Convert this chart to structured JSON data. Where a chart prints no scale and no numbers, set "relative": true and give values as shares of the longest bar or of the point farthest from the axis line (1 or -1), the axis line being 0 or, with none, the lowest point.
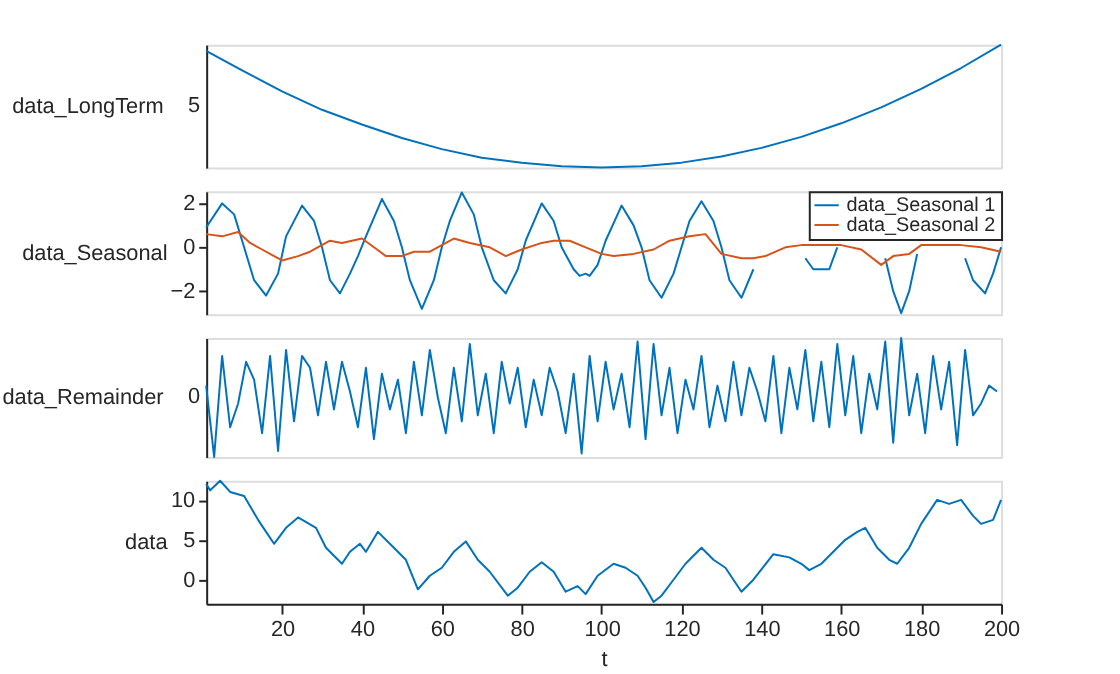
{
  "chart_data": [
    {
      "type": "line",
      "ylabel": "data_LongTerm",
      "relative": true,
      "xlim": [
        1,
        200
      ],
      "annotations": [
        "5"
      ],
      "tick_labels": "y",
      "grid": false,
      "legend": false,
      "series": [
        {
          "color": "#0072bd",
          "x": [
            1,
            10,
            20,
            30,
            40,
            50,
            60,
            70,
            80,
            90,
            100,
            110,
            120,
            130,
            140,
            150,
            160,
            170,
            180,
            190,
            200
          ],
          "values": [
            0.95,
            0.79,
            0.62,
            0.47,
            0.35,
            0.24,
            0.15,
            0.08,
            0.04,
            0.01,
            0,
            0.01,
            0.04,
            0.09,
            0.16,
            0.25,
            0.36,
            0.49,
            0.64,
            0.81,
            1.0
          ]
        }
      ]
    },
    {
      "type": "line",
      "ylabel": "data_Seasonal",
      "xlim": [
        1,
        200
      ],
      "ylim": [
        -3.05,
        2.55
      ],
      "yticks": [
        -2,
        0,
        2
      ],
      "tick_labels": "y",
      "grid": false,
      "legend": "top right",
      "series": [
        {
          "name": "data_Seasonal 1",
          "color": "#0072bd",
          "x": [
            1,
            5,
            8,
            10.5,
            13,
            16,
            19,
            21,
            25,
            28,
            30,
            32,
            34.5,
            37,
            39,
            41,
            45,
            48,
            50,
            52,
            55,
            58,
            60,
            62,
            65,
            68,
            70,
            73,
            76,
            79,
            81,
            85,
            88,
            90,
            93,
            94.5,
            96,
            97,
            99,
            101,
            105,
            108,
            110,
            112,
            115,
            118,
            120,
            122,
            125,
            128,
            130,
            132,
            135,
            138,
            140,
            141.5,
            145,
            149,
            151,
            153,
            157,
            159,
            160.5,
            165,
            169.5,
            171,
            173,
            175,
            177,
            179,
            180.5,
            185,
            189,
            191,
            193,
            196,
            198,
            200
          ],
          "values": [
            0.9,
            2.0,
            1.5,
            0,
            -1.5,
            -2.2,
            -1.2,
            0.5,
            1.9,
            1.2,
            0,
            -1.5,
            -2.1,
            -1.2,
            -0.4,
            0.5,
            2.2,
            1.2,
            0,
            -1.5,
            -2.8,
            -1.5,
            0,
            1.2,
            2.5,
            1.5,
            0,
            -1.5,
            -2.1,
            -1.0,
            0.3,
            2.0,
            1.2,
            0,
            -1.0,
            -1.3,
            -1.2,
            -1.3,
            -0.8,
            0.3,
            1.9,
            1.0,
            0,
            -1.5,
            -2.3,
            -1.2,
            0,
            1.2,
            2.1,
            1.2,
            0,
            -1.5,
            -2.3,
            -1.0,
            null,
            null,
            null,
            null,
            -0.5,
            -1.0,
            -1.0,
            0,
            null,
            null,
            null,
            -0.5,
            -2.0,
            -3.0,
            -2.0,
            -0.3,
            null,
            null,
            null,
            -0.5,
            -1.5,
            -2.1,
            -1.2,
            0
          ]
        },
        {
          "name": "data_Seasonal 2",
          "color": "#d95319",
          "x": [
            1,
            5,
            9,
            12,
            15,
            20,
            24,
            27,
            32,
            35,
            40,
            43,
            46,
            50,
            53,
            57,
            63,
            67,
            72,
            76,
            80,
            85,
            88,
            92,
            96,
            100,
            103,
            108,
            113,
            117,
            122,
            126,
            130,
            135,
            138,
            141,
            146,
            150,
            155,
            160,
            165,
            170,
            173,
            177,
            180,
            185,
            190,
            195,
            200
          ],
          "values": [
            0.6,
            0.5,
            0.7,
            0.2,
            -0.1,
            -0.6,
            -0.4,
            -0.2,
            0.3,
            0.2,
            0.4,
            0,
            -0.4,
            -0.4,
            -0.2,
            -0.2,
            0.4,
            0.2,
            0,
            -0.4,
            -0.1,
            0.2,
            0.3,
            0.3,
            0,
            -0.3,
            -0.4,
            -0.3,
            -0.1,
            0.3,
            0.5,
            0.6,
            -0.3,
            -0.5,
            -0.5,
            -0.4,
            0,
            0.1,
            0.1,
            0.1,
            -0.1,
            -0.8,
            -0.4,
            -0.3,
            0.1,
            0.1,
            0.1,
            0.0,
            -0.2
          ]
        }
      ]
    },
    {
      "type": "line",
      "ylabel": "data_Remainder",
      "relative": true,
      "xlim": [
        1,
        200
      ],
      "annotations": [
        "0"
      ],
      "tick_labels": "y",
      "grid": false,
      "legend": false,
      "series": [
        {
          "color": "#0072bd",
          "x": [
            1,
            3,
            5,
            7,
            9,
            11,
            13,
            15,
            17,
            19,
            21,
            23,
            25,
            27,
            29,
            31,
            33,
            35,
            37,
            39,
            41,
            43,
            45,
            47,
            49,
            51,
            53,
            55,
            57,
            59,
            61,
            63,
            65,
            67,
            69,
            71,
            73,
            75,
            77,
            79,
            81,
            83,
            85,
            87,
            89,
            91,
            93,
            95,
            97,
            99,
            101,
            103,
            105,
            107,
            109,
            111,
            113,
            115,
            117,
            119,
            121,
            123,
            125,
            127,
            129,
            131,
            133,
            135,
            137,
            139,
            141,
            143,
            145,
            147,
            149,
            151,
            153,
            155,
            157,
            159,
            161,
            163,
            165,
            167,
            169,
            171,
            173,
            175,
            177,
            179,
            181,
            183,
            185,
            187,
            189,
            191,
            193,
            195,
            197,
            199
          ],
          "values": [
            0.6,
            0,
            0.85,
            0.25,
            0.45,
            0.8,
            0.65,
            0.2,
            0.85,
            0.05,
            0.9,
            0.3,
            0.85,
            0.75,
            0.35,
            0.8,
            0.4,
            0.8,
            0.55,
            0.25,
            0.75,
            0.15,
            0.7,
            0.4,
            0.65,
            0.2,
            0.8,
            0.35,
            0.9,
            0.5,
            0.2,
            0.75,
            0.3,
            0.95,
            0.35,
            0.7,
            0.2,
            0.8,
            0.45,
            0.75,
            0.25,
            0.65,
            0.35,
            0.75,
            0.55,
            0.2,
            0.7,
            0.03,
            0.85,
            0.3,
            0.8,
            0.4,
            0.7,
            0.25,
            0.97,
            0.15,
            0.95,
            0.35,
            0.75,
            0.2,
            0.65,
            0.4,
            0.85,
            0.25,
            0.6,
            0.3,
            0.8,
            0.35,
            0.75,
            0.55,
            0.3,
            0.85,
            0.2,
            0.75,
            0.4,
            0.9,
            0.3,
            0.8,
            0.25,
            0.95,
            0.35,
            0.85,
            0.2,
            0.7,
            0.4,
            0.97,
            0.12,
            1,
            0.35,
            0.7,
            0.2,
            0.85,
            0.4,
            0.8,
            0.1,
            0.9,
            0.35,
            0.45,
            0.6,
            0.55
          ]
        }
      ]
    },
    {
      "type": "line",
      "ylabel": "data",
      "xlabel": "t",
      "xlim": [
        1,
        200
      ],
      "xticks": [
        20,
        40,
        60,
        80,
        100,
        120,
        140,
        160,
        180,
        200
      ],
      "ylim": [
        -3,
        12.4
      ],
      "yticks": [
        0,
        5,
        10
      ],
      "grid": false,
      "legend": false,
      "series": [
        {
          "color": "#0072bd",
          "x": [
            1,
            2,
            4.5,
            7,
            10.5,
            14,
            16,
            18,
            21,
            24,
            28.5,
            31,
            35,
            37,
            39.5,
            41,
            44,
            48,
            51,
            54,
            57,
            60,
            63,
            66,
            69,
            72,
            76.5,
            79,
            82,
            85,
            88,
            91,
            94,
            96,
            99,
            103,
            106,
            109,
            111,
            113,
            115,
            118,
            121,
            125,
            128,
            131,
            135,
            138,
            143,
            147,
            150,
            152,
            155,
            158,
            161,
            164,
            166,
            169,
            172,
            174,
            177,
            180,
            184,
            187,
            190,
            193,
            195,
            198,
            200
          ],
          "values": [
            12,
            11.2,
            12.4,
            11,
            10.5,
            7.5,
            6,
            4.5,
            6.5,
            7.8,
            6.5,
            4,
            2,
            3.5,
            4.5,
            3.5,
            6,
            4,
            2.5,
            -1.2,
            0.5,
            1.5,
            3.5,
            4.8,
            2.5,
            1,
            -2,
            -1,
            1,
            2.2,
            1,
            -1.5,
            -0.8,
            -1.8,
            0.5,
            2,
            1.5,
            0.5,
            -1,
            -2.8,
            -2,
            0,
            2,
            4,
            2.5,
            1.5,
            -1.5,
            0,
            3.2,
            2.8,
            2,
            1.2,
            2,
            3.5,
            5,
            6,
            6.5,
            4,
            2.5,
            2,
            4,
            7,
            10,
            9.5,
            10,
            8,
            7,
            7.5,
            10
          ]
        }
      ]
    }
  ]
}
